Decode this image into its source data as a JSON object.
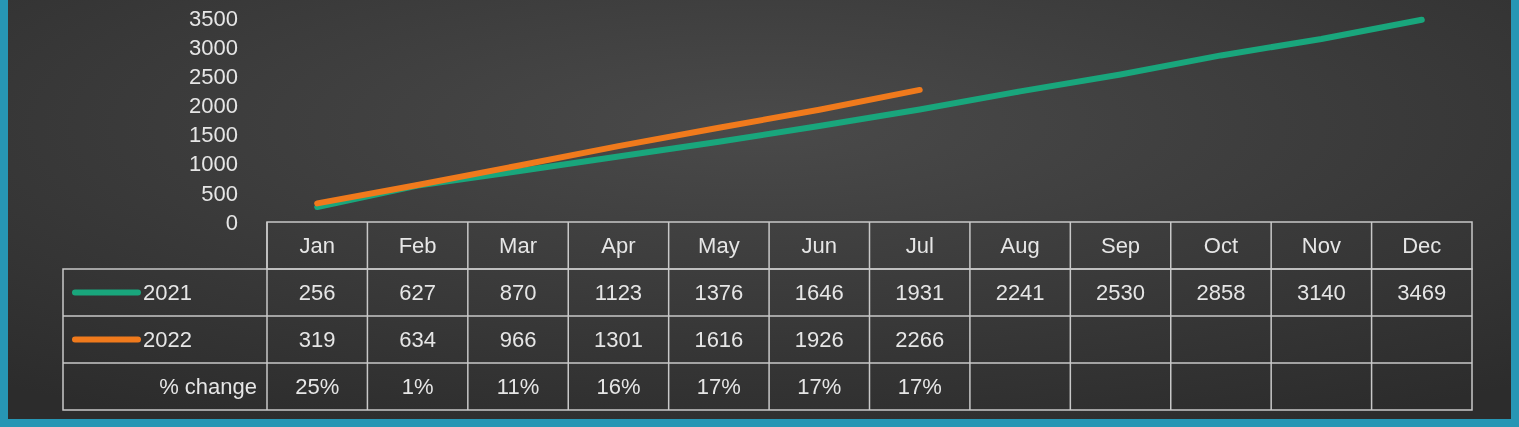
{
  "chart_data": {
    "type": "line",
    "categories": [
      "Jan",
      "Feb",
      "Mar",
      "Apr",
      "May",
      "Jun",
      "Jul",
      "Aug",
      "Sep",
      "Oct",
      "Nov",
      "Dec"
    ],
    "series": [
      {
        "name": "2021",
        "color": "#19a67c",
        "values": [
          256,
          627,
          870,
          1123,
          1376,
          1646,
          1931,
          2241,
          2530,
          2858,
          3140,
          3469
        ]
      },
      {
        "name": "2022",
        "color": "#f07a1c",
        "values": [
          319,
          634,
          966,
          1301,
          1616,
          1926,
          2266,
          null,
          null,
          null,
          null,
          null
        ]
      }
    ],
    "ylim": [
      0,
      3500
    ],
    "yticks": [
      0,
      500,
      1000,
      1500,
      2000,
      2500,
      3000,
      3500
    ],
    "data_labels": true,
    "legend": "bottom left",
    "marker": "none",
    "annotations": [
      "% change",
      "25%",
      "1%",
      "11%",
      "16%",
      "17%",
      "17%",
      "17%"
    ]
  }
}
